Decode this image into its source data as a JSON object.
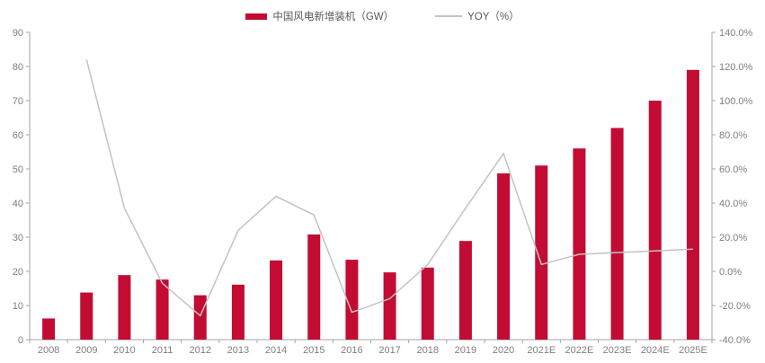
{
  "legend": {
    "bars_label": "中国风电新增装机（GW）",
    "line_label": "YOY（%）"
  },
  "colors": {
    "bar": "#C20C33",
    "line": "#C3C3C3",
    "axis": "#A6A6A6",
    "tick_text": "#7F7F7F",
    "legend_text": "#595959",
    "background": "#FFFFFF"
  },
  "chart_data": {
    "type": "bar",
    "title": "",
    "xlabel": "",
    "ylabel": "",
    "grid": false,
    "legend_position": "top-center",
    "categories": [
      "2008",
      "2009",
      "2010",
      "2011",
      "2012",
      "2013",
      "2014",
      "2015",
      "2016",
      "2017",
      "2018",
      "2019",
      "2020",
      "2021E",
      "2022E",
      "2023E",
      "2024E",
      "2025E"
    ],
    "series": [
      {
        "name": "中国风电新增装机（GW）",
        "type": "bar",
        "axis": "left",
        "color": "#C20C33",
        "values": [
          6.2,
          13.8,
          18.9,
          17.6,
          13.0,
          16.1,
          23.2,
          30.8,
          23.4,
          19.7,
          21.1,
          28.9,
          48.7,
          51.0,
          56.0,
          62.0,
          70.0,
          79.0
        ]
      },
      {
        "name": "YOY（%）",
        "type": "line",
        "axis": "right",
        "color": "#C3C3C3",
        "values": [
          null,
          124,
          37,
          -7,
          -26,
          24,
          44,
          33,
          -24,
          -16,
          4,
          37,
          69,
          4,
          10,
          11,
          12,
          13
        ]
      }
    ],
    "left_axis": {
      "min": 0,
      "max": 90,
      "step": 10,
      "tick_labels": [
        "0",
        "10",
        "20",
        "30",
        "40",
        "50",
        "60",
        "70",
        "80",
        "90"
      ]
    },
    "right_axis": {
      "min": -40,
      "max": 140,
      "step": 20,
      "tick_labels": [
        "-40.0%",
        "-20.0%",
        "0.0%",
        "20.0%",
        "40.0%",
        "60.0%",
        "80.0%",
        "100.0%",
        "120.0%",
        "140.0%"
      ]
    }
  }
}
